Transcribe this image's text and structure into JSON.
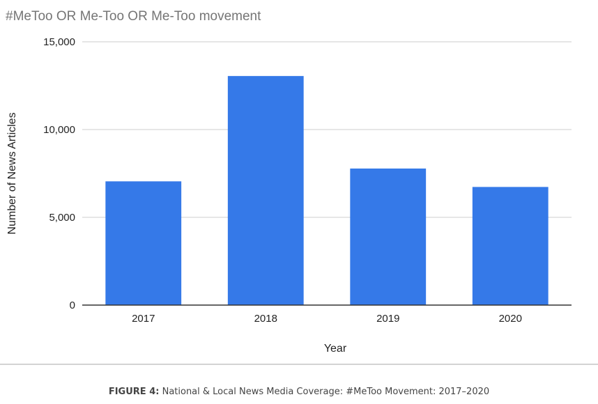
{
  "chart_data": {
    "type": "bar",
    "title": "#MeToo OR Me-Too OR Me-Too movement",
    "xlabel": "Year",
    "ylabel": "Number of News Articles",
    "categories": [
      "2017",
      "2018",
      "2019",
      "2020"
    ],
    "values": [
      7050,
      13050,
      7780,
      6730
    ],
    "ylim": [
      0,
      15000
    ],
    "yticks": [
      0,
      5000,
      10000,
      15000
    ],
    "ytick_labels": [
      "0",
      "5,000",
      "10,000",
      "15,000"
    ],
    "grid": true,
    "legend": "none",
    "bar_color": "#3579e8"
  },
  "caption": {
    "label": "FIGURE 4:",
    "text": "National & Local News Media Coverage: #MeToo Movement: 2017–2020"
  }
}
